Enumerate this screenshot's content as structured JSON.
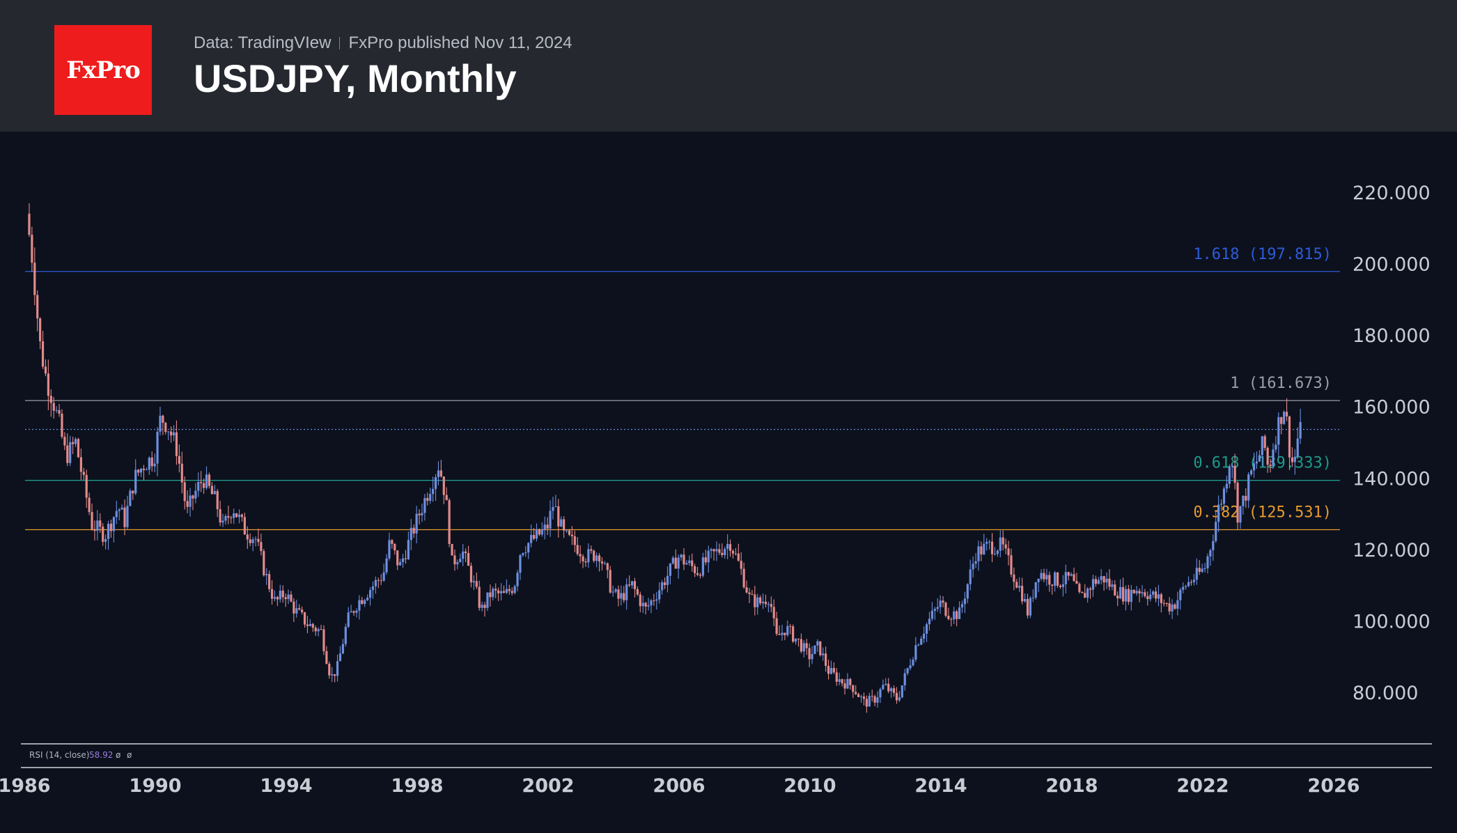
{
  "header": {
    "logo_text": "FxPro",
    "source_left": "Data: TradingVIew",
    "source_right": "FxPro published Nov 11, 2024",
    "title": "USDJPY, Monthly"
  },
  "indicator": {
    "label": "RSI (14, close)",
    "value": "58.92",
    "extra1": "ø",
    "extra2": "ø"
  },
  "colors": {
    "up": "#6d8fe0",
    "down": "#e38a8a",
    "fib_1618": "#2e5bd9",
    "fib_1": "#9a9ea8",
    "fib_0618": "#1f9a8a",
    "fib_0382": "#e89a2c"
  },
  "chart_data": {
    "type": "candlestick",
    "title": "USDJPY, Monthly",
    "x_range": [
      1986,
      2026
    ],
    "ylim": [
      70,
      230
    ],
    "y_ticks": [
      "220.000",
      "200.000",
      "180.000",
      "160.000",
      "140.000",
      "120.000",
      "100.000",
      "80.000"
    ],
    "y_tick_values": [
      220,
      200,
      180,
      160,
      140,
      120,
      100,
      80
    ],
    "x_ticks": [
      "1986",
      "1990",
      "1994",
      "1998",
      "2002",
      "2006",
      "2010",
      "2014",
      "2018",
      "2022",
      "2026"
    ],
    "x_tick_values": [
      1986,
      1990,
      1994,
      1998,
      2002,
      2006,
      2010,
      2014,
      2018,
      2022,
      2026
    ],
    "fib_levels": [
      {
        "label": "1.618 (197.815)",
        "value": 197.815,
        "color_key": "fib_1618"
      },
      {
        "label": "1 (161.673)",
        "value": 161.673,
        "color_key": "fib_1"
      },
      {
        "label": "0.618 (139.333)",
        "value": 139.333,
        "color_key": "fib_0618"
      },
      {
        "label": "0.382 (125.531)",
        "value": 125.531,
        "color_key": "fib_0382"
      }
    ],
    "current_price": 153.6,
    "price_path": [
      [
        1986.0,
        214
      ],
      [
        1986.2,
        200
      ],
      [
        1986.4,
        178
      ],
      [
        1986.6,
        168
      ],
      [
        1986.8,
        162
      ],
      [
        1987.0,
        155
      ],
      [
        1987.2,
        146
      ],
      [
        1987.5,
        150
      ],
      [
        1987.8,
        136
      ],
      [
        1988.0,
        127
      ],
      [
        1988.4,
        124
      ],
      [
        1988.8,
        132
      ],
      [
        1989.0,
        128
      ],
      [
        1989.3,
        140
      ],
      [
        1989.6,
        144
      ],
      [
        1989.9,
        146
      ],
      [
        1990.1,
        157
      ],
      [
        1990.3,
        155
      ],
      [
        1990.6,
        148
      ],
      [
        1990.9,
        130
      ],
      [
        1991.1,
        135
      ],
      [
        1991.4,
        140
      ],
      [
        1991.8,
        133
      ],
      [
        1992.0,
        126
      ],
      [
        1992.3,
        132
      ],
      [
        1992.7,
        125
      ],
      [
        1993.0,
        123
      ],
      [
        1993.3,
        113
      ],
      [
        1993.6,
        105
      ],
      [
        1993.9,
        108
      ],
      [
        1994.2,
        103
      ],
      [
        1994.6,
        99
      ],
      [
        1995.0,
        97
      ],
      [
        1995.3,
        84
      ],
      [
        1995.5,
        87
      ],
      [
        1995.8,
        100
      ],
      [
        1996.1,
        105
      ],
      [
        1996.5,
        109
      ],
      [
        1996.9,
        113
      ],
      [
        1997.1,
        122
      ],
      [
        1997.4,
        115
      ],
      [
        1997.8,
        125
      ],
      [
        1998.0,
        130
      ],
      [
        1998.3,
        137
      ],
      [
        1998.6,
        144
      ],
      [
        1998.8,
        135
      ],
      [
        1999.0,
        116
      ],
      [
        1999.3,
        120
      ],
      [
        1999.6,
        112
      ],
      [
        1999.9,
        103
      ],
      [
        2000.2,
        108
      ],
      [
        2000.6,
        107
      ],
      [
        2000.9,
        110
      ],
      [
        2001.1,
        120
      ],
      [
        2001.5,
        123
      ],
      [
        2001.9,
        126
      ],
      [
        2002.1,
        133
      ],
      [
        2002.4,
        124
      ],
      [
        2002.8,
        121
      ],
      [
        2003.1,
        118
      ],
      [
        2003.5,
        119
      ],
      [
        2003.9,
        108
      ],
      [
        2004.1,
        106
      ],
      [
        2004.5,
        110
      ],
      [
        2004.9,
        103
      ],
      [
        2005.2,
        107
      ],
      [
        2005.6,
        113
      ],
      [
        2005.9,
        118
      ],
      [
        2006.2,
        116
      ],
      [
        2006.5,
        114
      ],
      [
        2006.9,
        118
      ],
      [
        2007.2,
        120
      ],
      [
        2007.5,
        122
      ],
      [
        2007.8,
        115
      ],
      [
        2008.1,
        106
      ],
      [
        2008.4,
        105
      ],
      [
        2008.7,
        107
      ],
      [
        2008.9,
        95
      ],
      [
        2009.2,
        98
      ],
      [
        2009.6,
        94
      ],
      [
        2009.9,
        90
      ],
      [
        2010.2,
        93
      ],
      [
        2010.5,
        86
      ],
      [
        2010.9,
        83
      ],
      [
        2011.2,
        82
      ],
      [
        2011.6,
        77
      ],
      [
        2011.9,
        78
      ],
      [
        2012.2,
        82
      ],
      [
        2012.6,
        78
      ],
      [
        2012.9,
        86
      ],
      [
        2013.2,
        94
      ],
      [
        2013.5,
        99
      ],
      [
        2013.9,
        105
      ],
      [
        2014.2,
        102
      ],
      [
        2014.5,
        102
      ],
      [
        2014.8,
        112
      ],
      [
        2015.0,
        119
      ],
      [
        2015.4,
        121
      ],
      [
        2015.8,
        121
      ],
      [
        2016.1,
        114
      ],
      [
        2016.4,
        108
      ],
      [
        2016.6,
        102
      ],
      [
        2016.9,
        114
      ],
      [
        2017.2,
        112
      ],
      [
        2017.6,
        111
      ],
      [
        2017.9,
        112
      ],
      [
        2018.2,
        106
      ],
      [
        2018.6,
        111
      ],
      [
        2018.9,
        112
      ],
      [
        2019.2,
        109
      ],
      [
        2019.6,
        107
      ],
      [
        2019.9,
        109
      ],
      [
        2020.2,
        108
      ],
      [
        2020.6,
        106
      ],
      [
        2020.9,
        104
      ],
      [
        2021.1,
        105
      ],
      [
        2021.4,
        110
      ],
      [
        2021.8,
        113
      ],
      [
        2022.0,
        115
      ],
      [
        2022.2,
        122
      ],
      [
        2022.4,
        131
      ],
      [
        2022.6,
        137
      ],
      [
        2022.8,
        148
      ],
      [
        2022.9,
        139
      ],
      [
        2023.0,
        130
      ],
      [
        2023.2,
        134
      ],
      [
        2023.4,
        141
      ],
      [
        2023.6,
        145
      ],
      [
        2023.8,
        150
      ],
      [
        2023.95,
        142
      ],
      [
        2024.1,
        150
      ],
      [
        2024.3,
        157
      ],
      [
        2024.45,
        161
      ],
      [
        2024.55,
        150
      ],
      [
        2024.7,
        143
      ],
      [
        2024.85,
        152
      ],
      [
        2024.9,
        153
      ]
    ]
  }
}
